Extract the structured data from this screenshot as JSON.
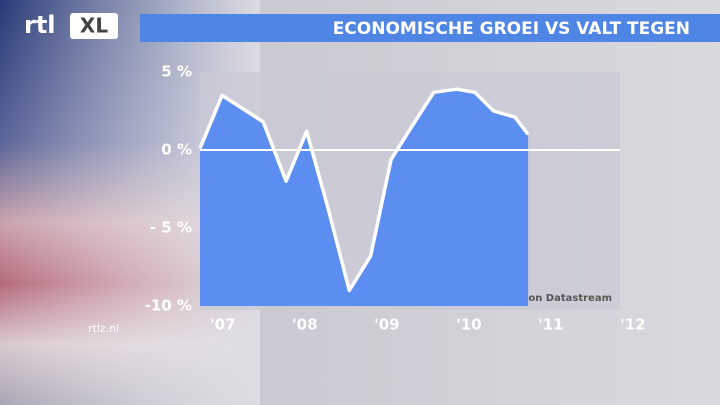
{
  "logo": "rtl",
  "logo_badge": "XL",
  "site": "rtlz.nl",
  "chart_data": {
    "type": "area",
    "title": "ECONOMISCHE GROEI VS VALT TEGEN",
    "source": "Bron: Thomson Datastream",
    "x": [
      2006.6,
      2006.87,
      2007.37,
      2007.65,
      2007.9,
      2008.16,
      2008.42,
      2008.68,
      2008.93,
      2009.17,
      2009.45,
      2009.73,
      2009.95,
      2010.18,
      2010.44,
      2010.6
    ],
    "series": [
      {
        "color": "#5b8ef0",
        "values": [
          0.1,
          3.5,
          1.8,
          -2.0,
          1.2,
          -3.7,
          -9.0,
          -6.8,
          -0.6,
          1.4,
          3.7,
          3.9,
          3.7,
          2.5,
          2.1,
          1.0
        ]
      }
    ],
    "xlim": [
      2006.6,
      2012.05
    ],
    "xticks": [
      {
        "value": 2007,
        "label": "'07"
      },
      {
        "value": 2008,
        "label": "'08"
      },
      {
        "value": 2009,
        "label": "'09"
      },
      {
        "value": 2010,
        "label": "'10"
      },
      {
        "value": 2011,
        "label": "'11"
      },
      {
        "value": 2012,
        "label": "'12"
      }
    ],
    "ylim": [
      -10,
      5
    ],
    "yticks": [
      {
        "value": 5,
        "label": "5 %"
      },
      {
        "value": 0,
        "label": "0 %"
      },
      {
        "value": -5,
        "label": "- 5 %"
      },
      {
        "value": -10,
        "label": "-10 %"
      }
    ]
  }
}
